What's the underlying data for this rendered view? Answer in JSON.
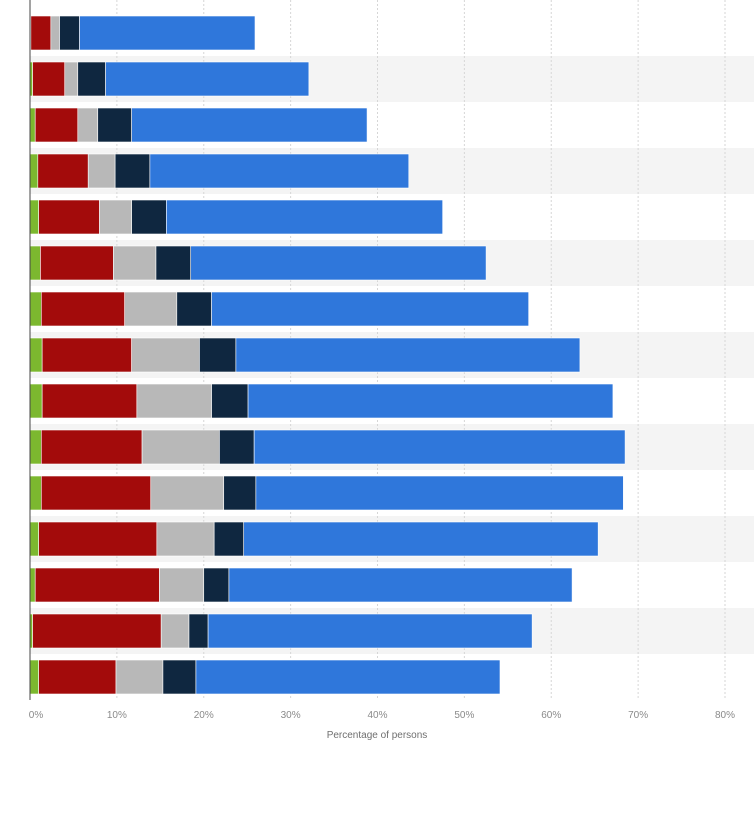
{
  "chart_data": {
    "type": "bar",
    "orientation": "horizontal",
    "stacked": true,
    "title": "",
    "xlabel": "Percentage of persons",
    "ylabel": "",
    "xlim": [
      0,
      80
    ],
    "x_ticks": [
      "0%",
      "10%",
      "20%",
      "30%",
      "40%",
      "50%",
      "60%",
      "70%",
      "80%"
    ],
    "categories": [
      "",
      "",
      "",
      "",
      "",
      "",
      "",
      "",
      "",
      "",
      "",
      "",
      "",
      "",
      ""
    ],
    "grid": true,
    "legend": "none",
    "series": [
      {
        "color": "#7cb82f",
        "values": [
          0.1,
          0.3,
          0.6,
          0.9,
          1.0,
          1.2,
          1.3,
          1.4,
          1.4,
          1.3,
          1.3,
          1.0,
          0.6,
          0.3,
          1.0
        ]
      },
      {
        "color": "#a30b0b",
        "values": [
          2.3,
          3.7,
          4.9,
          5.8,
          7.0,
          8.4,
          9.6,
          10.3,
          10.9,
          11.6,
          12.6,
          13.6,
          14.3,
          14.8,
          8.9
        ]
      },
      {
        "color": "#b8b8b8",
        "values": [
          1.0,
          1.5,
          2.3,
          3.1,
          3.7,
          4.9,
          6.0,
          7.8,
          8.6,
          8.9,
          8.4,
          6.6,
          5.1,
          3.2,
          5.4
        ]
      },
      {
        "color": "#0f2740",
        "values": [
          2.3,
          3.2,
          3.9,
          4.0,
          4.0,
          4.0,
          4.0,
          4.2,
          4.2,
          4.0,
          3.7,
          3.4,
          2.9,
          2.2,
          3.8
        ]
      },
      {
        "color": "#2f77db",
        "values": [
          20.2,
          23.4,
          27.1,
          29.8,
          31.8,
          34.0,
          36.5,
          39.6,
          42.0,
          42.7,
          42.3,
          40.8,
          39.5,
          37.3,
          35.0
        ]
      }
    ]
  }
}
